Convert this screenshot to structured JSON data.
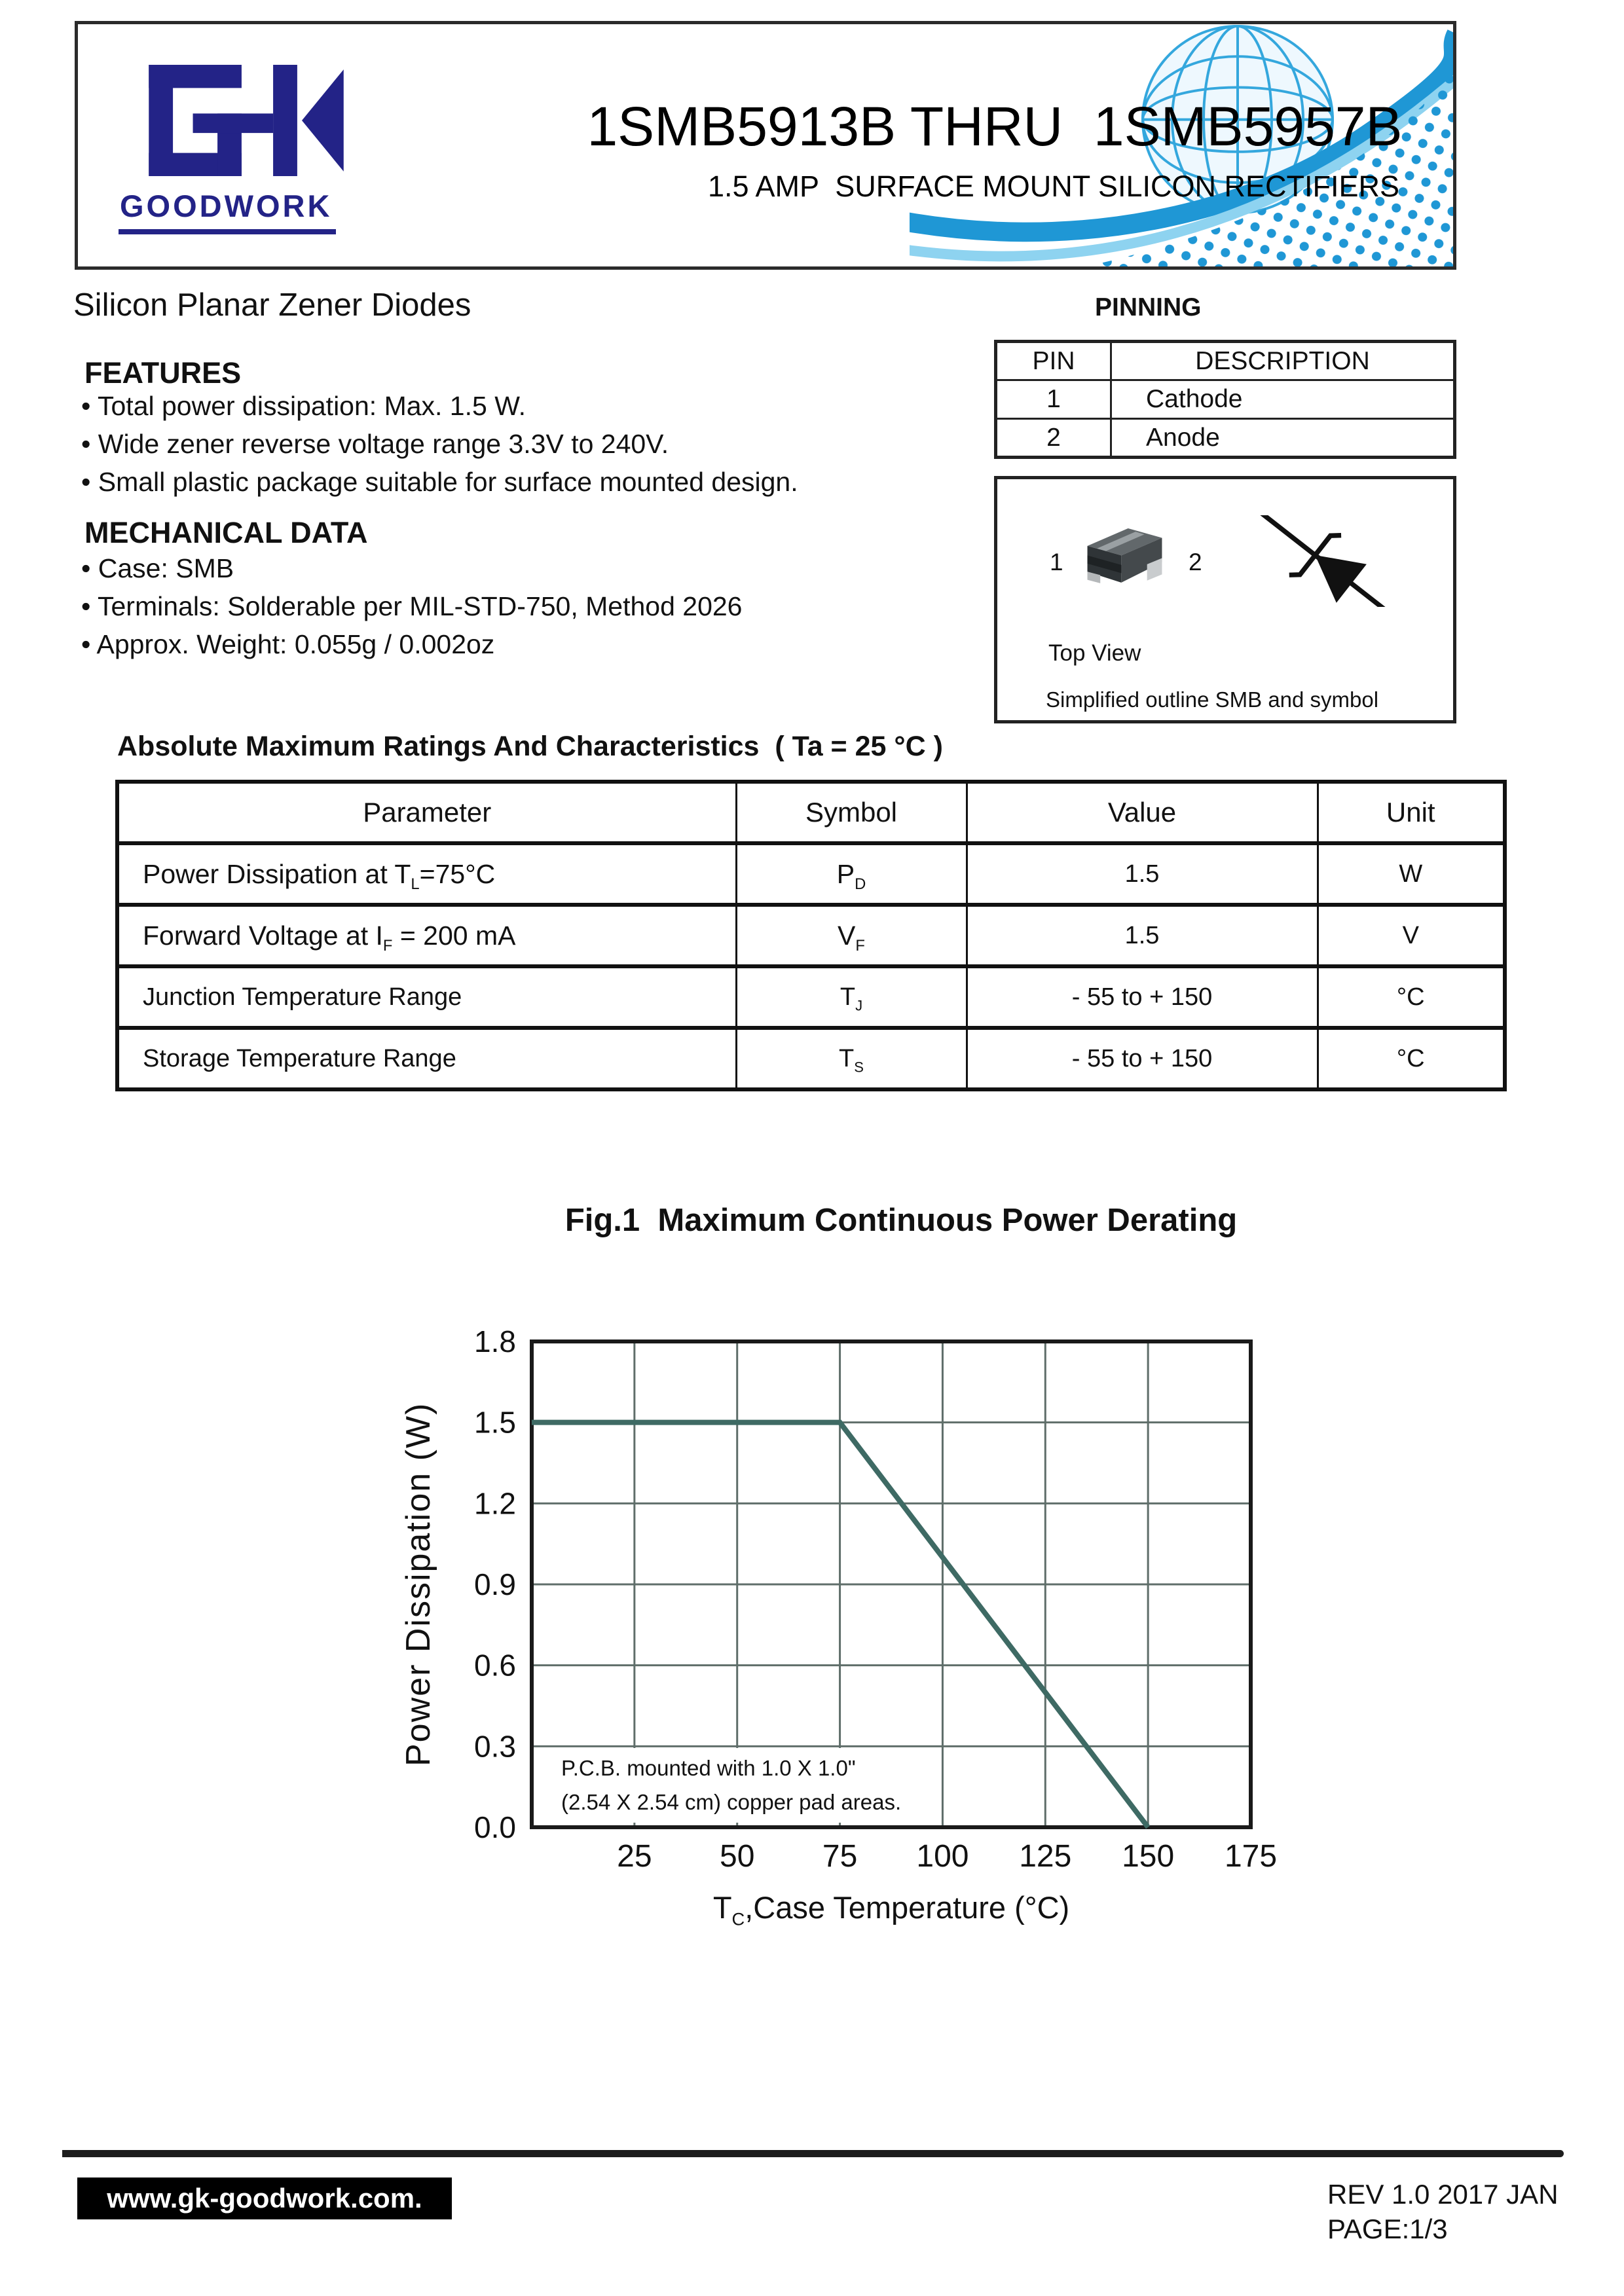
{
  "header": {
    "logo_text": "GK",
    "logo_word": "GOODWORK",
    "logo_color": "#232387",
    "title": "1SMB5913B THRU  1SMB5957B",
    "subtitle": "1.5 AMP  SURFACE MOUNT SILICON RECTIFIERS",
    "art_blue": "#1f97d5"
  },
  "intro": {
    "product_family": "Silicon Planar Zener Diodes"
  },
  "pinning": {
    "heading": "PINNING",
    "columns": [
      "PIN",
      "DESCRIPTION"
    ],
    "rows": [
      {
        "pin": "1",
        "description": "Cathode"
      },
      {
        "pin": "2",
        "description": "Anode"
      }
    ]
  },
  "outline_box": {
    "pin1": "1",
    "pin2": "2",
    "top_view": "Top View",
    "caption": "Simplified outline SMB and symbol"
  },
  "features": {
    "heading": "FEATURES",
    "items": [
      "• Total power dissipation: Max. 1.5 W.",
      "• Wide zener reverse voltage range 3.3V to 240V.",
      "• Small plastic package suitable for surface mounted design."
    ]
  },
  "mechanical": {
    "heading": "MECHANICAL DATA",
    "items": [
      "• Case: SMB",
      "• Terminals: Solderable per MIL-STD-750, Method 2026",
      "• Approx. Weight: 0.055g / 0.002oz"
    ]
  },
  "ratings": {
    "heading": "Absolute Maximum Ratings And Characteristics  ( Ta = 25 °C )",
    "columns": [
      "Parameter",
      "Symbol",
      "Value",
      "Unit"
    ],
    "rows": [
      {
        "parameter": {
          "pre": "Power Dissipation at T",
          "sub": "L",
          "post": "=75°C"
        },
        "symbol": {
          "base": "P",
          "sub": "D"
        },
        "value": "1.5",
        "unit": "W"
      },
      {
        "parameter": {
          "pre": "Forward Voltage at I",
          "sub": "F",
          "post": " = 200 mA"
        },
        "symbol": {
          "base": "V",
          "sub": "F"
        },
        "value": "1.5",
        "unit": "V"
      },
      {
        "parameter": {
          "pre": "Junction Temperature Range",
          "sub": "",
          "post": ""
        },
        "symbol": {
          "base": "T",
          "sub": "J"
        },
        "value": "- 55 to + 150",
        "unit": "°C"
      },
      {
        "parameter": {
          "pre": "Storage Temperature Range",
          "sub": "",
          "post": ""
        },
        "symbol": {
          "base": "T",
          "sub": "S"
        },
        "value": "- 55 to + 150",
        "unit": "°C"
      }
    ]
  },
  "chart_data": {
    "type": "line",
    "title": "Fig.1  Maximum Continuous Power Derating",
    "ylabel": "Power Dissipation (W)",
    "xlabel": {
      "pre": "T",
      "sub": "C",
      "post": ",Case Temperature (°C)"
    },
    "xlim": [
      0,
      175
    ],
    "ylim": [
      0,
      1.8
    ],
    "x_ticks": [
      25,
      50,
      75,
      100,
      125,
      150,
      175
    ],
    "y_ticks": [
      0.0,
      0.3,
      0.6,
      0.9,
      1.2,
      1.5,
      1.8
    ],
    "grid": true,
    "legend": "none",
    "series": [
      {
        "name": "maximum continuous power dissipation",
        "points": [
          [
            0,
            1.5
          ],
          [
            75,
            1.5
          ],
          [
            150,
            0.0
          ]
        ],
        "color": "#3e6a64"
      }
    ],
    "annotation": {
      "line1": "P.C.B. mounted with 1.0 X 1.0\"",
      "line2": "(2.54 X 2.54 cm) copper pad areas."
    },
    "grid_color": "#5f6e6a",
    "frame_color": "#1a1a1a"
  },
  "footer": {
    "website": "www.gk-goodwork.com.",
    "rev": "REV 1.0 2017 JAN",
    "page": "PAGE:1/3"
  }
}
